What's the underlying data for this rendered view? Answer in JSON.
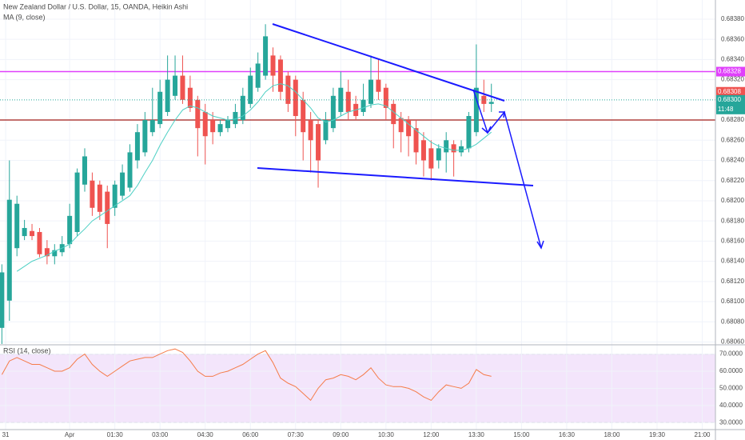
{
  "chart_data": {
    "type": "candlestick",
    "title": "New Zealand Dollar / U.S. Dollar, 15, OANDA, Heikin Ashi",
    "ma_label": "MA (9, close)",
    "rsi_label": "RSI (14, close)",
    "up_color": "#26a69a",
    "down_color": "#ef5350",
    "ma_color": "#4dd0c4",
    "rsi_color": "#f57c4a",
    "xlim": [
      -0.25,
      94.75
    ],
    "xticks": [
      {
        "value": 0.5,
        "label": "31"
      },
      {
        "value": 9,
        "label": "Apr"
      },
      {
        "value": 15,
        "label": "01:30"
      },
      {
        "value": 21,
        "label": "03:00"
      },
      {
        "value": 27,
        "label": "04:30"
      },
      {
        "value": 33,
        "label": "06:00"
      },
      {
        "value": 39,
        "label": "07:30"
      },
      {
        "value": 45,
        "label": "09:00"
      },
      {
        "value": 51,
        "label": "10:30"
      },
      {
        "value": 57,
        "label": "12:00"
      },
      {
        "value": 63,
        "label": "13:30"
      },
      {
        "value": 69,
        "label": "15:00"
      },
      {
        "value": 75,
        "label": "16:30"
      },
      {
        "value": 81,
        "label": "18:00"
      },
      {
        "value": 87,
        "label": "19:30"
      },
      {
        "value": 93,
        "label": "21:00"
      }
    ],
    "ylim": [
      0.68058,
      0.68399
    ],
    "yticks": [
      {
        "value": 0.6838,
        "label": "0.68380"
      },
      {
        "value": 0.6836,
        "label": "0.68360"
      },
      {
        "value": 0.6834,
        "label": "0.68340"
      },
      {
        "value": 0.6832,
        "label": "0.68320"
      },
      {
        "value": 0.6828,
        "label": "0.68280"
      },
      {
        "value": 0.6826,
        "label": "0.68260"
      },
      {
        "value": 0.6824,
        "label": "0.68240"
      },
      {
        "value": 0.6822,
        "label": "0.68220"
      },
      {
        "value": 0.682,
        "label": "0.68200"
      },
      {
        "value": 0.6818,
        "label": "0.68180"
      },
      {
        "value": 0.6816,
        "label": "0.68160"
      },
      {
        "value": 0.6814,
        "label": "0.68140"
      },
      {
        "value": 0.6812,
        "label": "0.68120"
      },
      {
        "value": 0.681,
        "label": "0.68100"
      },
      {
        "value": 0.6808,
        "label": "0.68080"
      },
      {
        "value": 0.6806,
        "label": "0.68060"
      }
    ],
    "open": [
      0.68074,
      0.68101,
      0.68153,
      0.68165,
      0.6817,
      0.68169,
      0.68153,
      0.68145,
      0.68149,
      0.68157,
      0.68169,
      0.68216,
      0.6822,
      0.68216,
      0.68209,
      0.68193,
      0.68205,
      0.68213,
      0.6824,
      0.68248,
      0.68268,
      0.68276,
      0.68288,
      0.68304,
      0.68324,
      0.68312,
      0.683,
      0.68288,
      0.6828,
      0.68268,
      0.68272,
      0.68276,
      0.6828,
      0.68296,
      0.68312,
      0.68324,
      0.68344,
      0.6834,
      0.68324,
      0.6832,
      0.683,
      0.6828,
      0.68276,
      0.6826,
      0.68272,
      0.68288,
      0.68308,
      0.68296,
      0.68288,
      0.68296,
      0.6832,
      0.68312,
      0.68296,
      0.68282,
      0.6828,
      0.68272,
      0.6826,
      0.68252,
      0.6824,
      0.68248,
      0.68256,
      0.68248,
      0.68252,
      0.68268,
      0.68304,
      0.68296
    ],
    "high": [
      0.68137,
      0.6824,
      0.68205,
      0.68181,
      0.68177,
      0.68173,
      0.68161,
      0.68157,
      0.68165,
      0.68197,
      0.68232,
      0.68252,
      0.68228,
      0.6822,
      0.68215,
      0.6822,
      0.68236,
      0.68256,
      0.68276,
      0.68288,
      0.68312,
      0.6832,
      0.68344,
      0.68344,
      0.68344,
      0.68324,
      0.68304,
      0.68296,
      0.68288,
      0.6828,
      0.68284,
      0.68296,
      0.68312,
      0.68332,
      0.68347,
      0.68375,
      0.68352,
      0.68344,
      0.68328,
      0.68324,
      0.68308,
      0.68288,
      0.6828,
      0.68288,
      0.68312,
      0.68328,
      0.6832,
      0.68304,
      0.68316,
      0.68344,
      0.6834,
      0.68316,
      0.683,
      0.68288,
      0.68284,
      0.6828,
      0.68268,
      0.6826,
      0.68256,
      0.68268,
      0.6826,
      0.6826,
      0.68288,
      0.68355,
      0.6832,
      0.68316
    ],
    "low": [
      0.68058,
      0.68081,
      0.68145,
      0.68161,
      0.68161,
      0.68144,
      0.68137,
      0.68137,
      0.68145,
      0.68153,
      0.68165,
      0.68209,
      0.68185,
      0.68181,
      0.68153,
      0.68185,
      0.68201,
      0.68209,
      0.68232,
      0.68244,
      0.68264,
      0.68272,
      0.68284,
      0.683,
      0.68296,
      0.68288,
      0.68244,
      0.68236,
      0.68256,
      0.68264,
      0.68268,
      0.68272,
      0.68276,
      0.68292,
      0.68308,
      0.6832,
      0.68308,
      0.683,
      0.68288,
      0.68264,
      0.6824,
      0.68228,
      0.68213,
      0.68256,
      0.68268,
      0.68284,
      0.6828,
      0.6828,
      0.68284,
      0.68292,
      0.683,
      0.6828,
      0.68252,
      0.68248,
      0.68244,
      0.68236,
      0.68224,
      0.6822,
      0.68232,
      0.68228,
      0.68224,
      0.68244,
      0.68248,
      0.68264,
      0.68288,
      0.68288
    ],
    "close": [
      0.68129,
      0.68201,
      0.68197,
      0.68173,
      0.68165,
      0.68147,
      0.68145,
      0.68151,
      0.68157,
      0.68185,
      0.68228,
      0.68244,
      0.68193,
      0.68189,
      0.68177,
      0.68216,
      0.68228,
      0.68248,
      0.68268,
      0.6828,
      0.6828,
      0.68308,
      0.6832,
      0.68324,
      0.683,
      0.68292,
      0.68272,
      0.68264,
      0.68268,
      0.68276,
      0.6828,
      0.68288,
      0.68304,
      0.68324,
      0.68336,
      0.68363,
      0.68324,
      0.68308,
      0.68296,
      0.68284,
      0.68268,
      0.6826,
      0.6824,
      0.6828,
      0.68304,
      0.68312,
      0.68288,
      0.68284,
      0.683,
      0.6832,
      0.68308,
      0.68292,
      0.68276,
      0.68268,
      0.68264,
      0.68248,
      0.6824,
      0.68232,
      0.68252,
      0.6826,
      0.68248,
      0.68254,
      0.68284,
      0.68312,
      0.68296,
      0.68298
    ],
    "ma": [
      null,
      null,
      0.6813,
      0.68135,
      0.6814,
      0.68143,
      0.68146,
      0.6815,
      0.68153,
      0.68157,
      0.68165,
      0.68172,
      0.6818,
      0.68185,
      0.6819,
      0.68195,
      0.682,
      0.68205,
      0.68215,
      0.68228,
      0.6824,
      0.68255,
      0.68268,
      0.6828,
      0.6829,
      0.68294,
      0.68292,
      0.68288,
      0.68284,
      0.68282,
      0.6828,
      0.68281,
      0.68284,
      0.6829,
      0.68298,
      0.68308,
      0.68314,
      0.68316,
      0.68314,
      0.68308,
      0.683,
      0.68292,
      0.68282,
      0.68278,
      0.6828,
      0.68284,
      0.68288,
      0.6829,
      0.68292,
      0.68295,
      0.68296,
      0.68294,
      0.68288,
      0.68282,
      0.68276,
      0.6827,
      0.68264,
      0.68258,
      0.68254,
      0.68252,
      0.6825,
      0.6825,
      0.68252,
      0.68256,
      0.68262,
      0.68268
    ],
    "horizontal_lines": [
      {
        "value": 0.68328,
        "color": "#e040fb",
        "label": "0.68328"
      },
      {
        "value": 0.6828,
        "color": "#b0413e"
      }
    ],
    "price_labels": [
      {
        "value": 0.68308,
        "label": "0.68308",
        "color": "#ef5350"
      },
      {
        "value": 0.683,
        "label": "0.68300",
        "color": "#26a69a",
        "countdown": "11:48"
      }
    ],
    "rsi": [
      58,
      66,
      68,
      66,
      64,
      64,
      62,
      60,
      60,
      62,
      67,
      70,
      64,
      60,
      57,
      60,
      63,
      66,
      67,
      68,
      68,
      70,
      72,
      73,
      71,
      66,
      60,
      57,
      57,
      59,
      60,
      62,
      64,
      67,
      70,
      72,
      65,
      56,
      53,
      51,
      47,
      43,
      50,
      55,
      56,
      58,
      57,
      55,
      58,
      62,
      56,
      52,
      51,
      51,
      50,
      48,
      45,
      43,
      48,
      52,
      51,
      50,
      53,
      61,
      58,
      57
    ],
    "rsi_ylim": [
      25.9,
      74.5
    ],
    "rsi_band": [
      30,
      70
    ],
    "rsi_yticks": [
      {
        "value": 70,
        "label": "70.0000"
      },
      {
        "value": 60,
        "label": "60.0000"
      },
      {
        "value": 50,
        "label": "50.0000"
      },
      {
        "value": 40,
        "label": "40.0000"
      },
      {
        "value": 30,
        "label": "30.0000"
      }
    ]
  }
}
